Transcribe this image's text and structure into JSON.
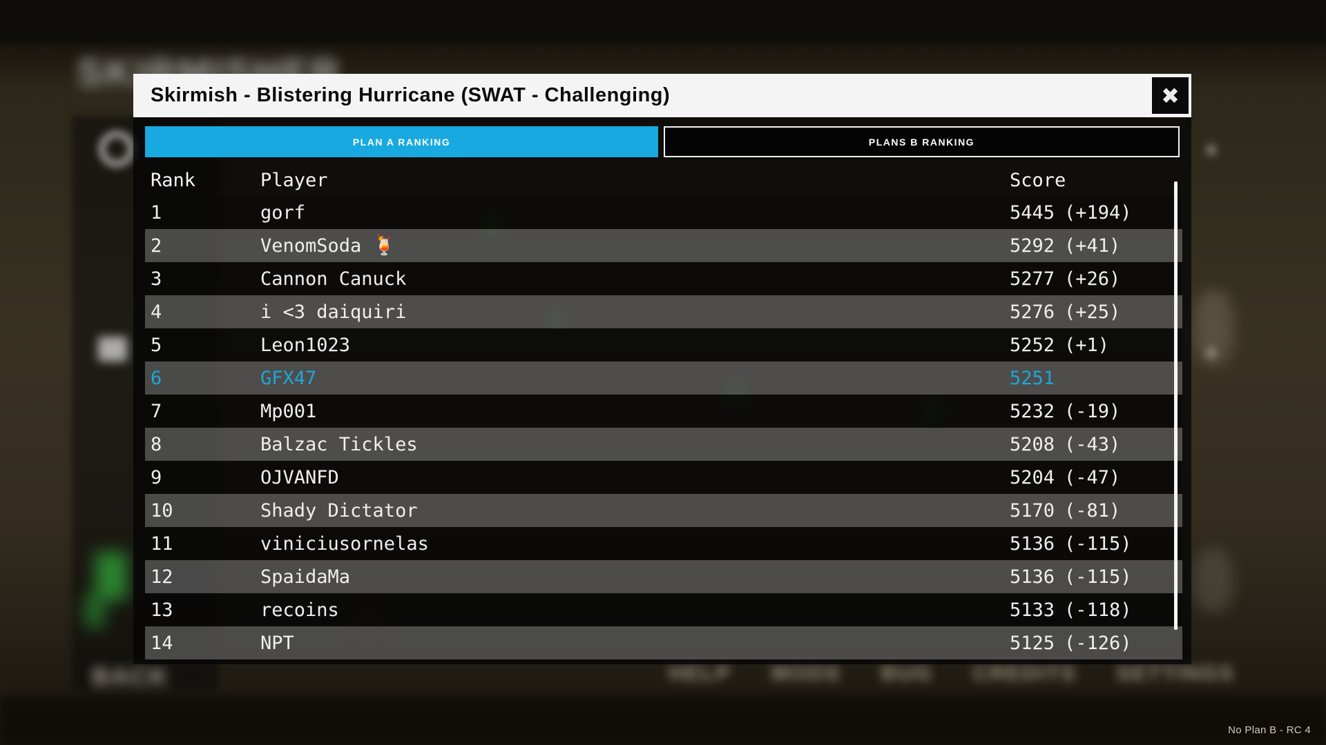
{
  "colors": {
    "accent": "#18a9e0",
    "highlight": "#1ea6da",
    "titlebar_bg": "#f4f4f4",
    "panel_bg": "#040404",
    "row_alt_gray": "#4f4f4f"
  },
  "window": {
    "title": "Skirmish - Blistering Hurricane (SWAT - Challenging)",
    "close_glyph": "✖"
  },
  "tabs": [
    {
      "label": "PLAN A RANKING",
      "active": true
    },
    {
      "label": "PLANS B RANKING",
      "active": false
    }
  ],
  "table": {
    "columns": [
      "Rank",
      "Player",
      "Score"
    ],
    "rows": [
      {
        "rank": "1",
        "player": "gorf",
        "score": "5445",
        "delta": "(+194)",
        "highlight": false
      },
      {
        "rank": "2",
        "player": "VenomSoda 🍹",
        "score": "5292",
        "delta": "(+41)",
        "highlight": false
      },
      {
        "rank": "3",
        "player": "Cannon Canuck",
        "score": "5277",
        "delta": "(+26)",
        "highlight": false
      },
      {
        "rank": "4",
        "player": "i <3 daiquiri",
        "score": "5276",
        "delta": "(+25)",
        "highlight": false
      },
      {
        "rank": "5",
        "player": "Leon1023",
        "score": "5252",
        "delta": "(+1)",
        "highlight": false
      },
      {
        "rank": "6",
        "player": "GFX47",
        "score": "5251",
        "delta": "",
        "highlight": true
      },
      {
        "rank": "7",
        "player": "Mp001",
        "score": "5232",
        "delta": "(-19)",
        "highlight": false
      },
      {
        "rank": "8",
        "player": "Balzac Tickles",
        "score": "5208",
        "delta": "(-43)",
        "highlight": false
      },
      {
        "rank": "9",
        "player": "OJVANFD",
        "score": "5204",
        "delta": "(-47)",
        "highlight": false
      },
      {
        "rank": "10",
        "player": "Shady Dictator",
        "score": "5170",
        "delta": "(-81)",
        "highlight": false
      },
      {
        "rank": "11",
        "player": "viniciusornelas",
        "score": "5136",
        "delta": "(-115)",
        "highlight": false
      },
      {
        "rank": "12",
        "player": "SpaidaMa",
        "score": "5136",
        "delta": "(-115)",
        "highlight": false
      },
      {
        "rank": "13",
        "player": "recoins",
        "score": "5133",
        "delta": "(-118)",
        "highlight": false
      },
      {
        "rank": "14",
        "player": "NPT",
        "score": "5125",
        "delta": "(-126)",
        "highlight": false
      }
    ]
  },
  "background": {
    "game_title": "SKIRMISHER",
    "back_label": "BACK",
    "footer_menu": [
      "HELP",
      "MODS",
      "BUG",
      "CREDITS",
      "SETTINGS"
    ],
    "arrow_glyph": "▲"
  },
  "status": {
    "version_label": "No Plan B - RC 4"
  }
}
